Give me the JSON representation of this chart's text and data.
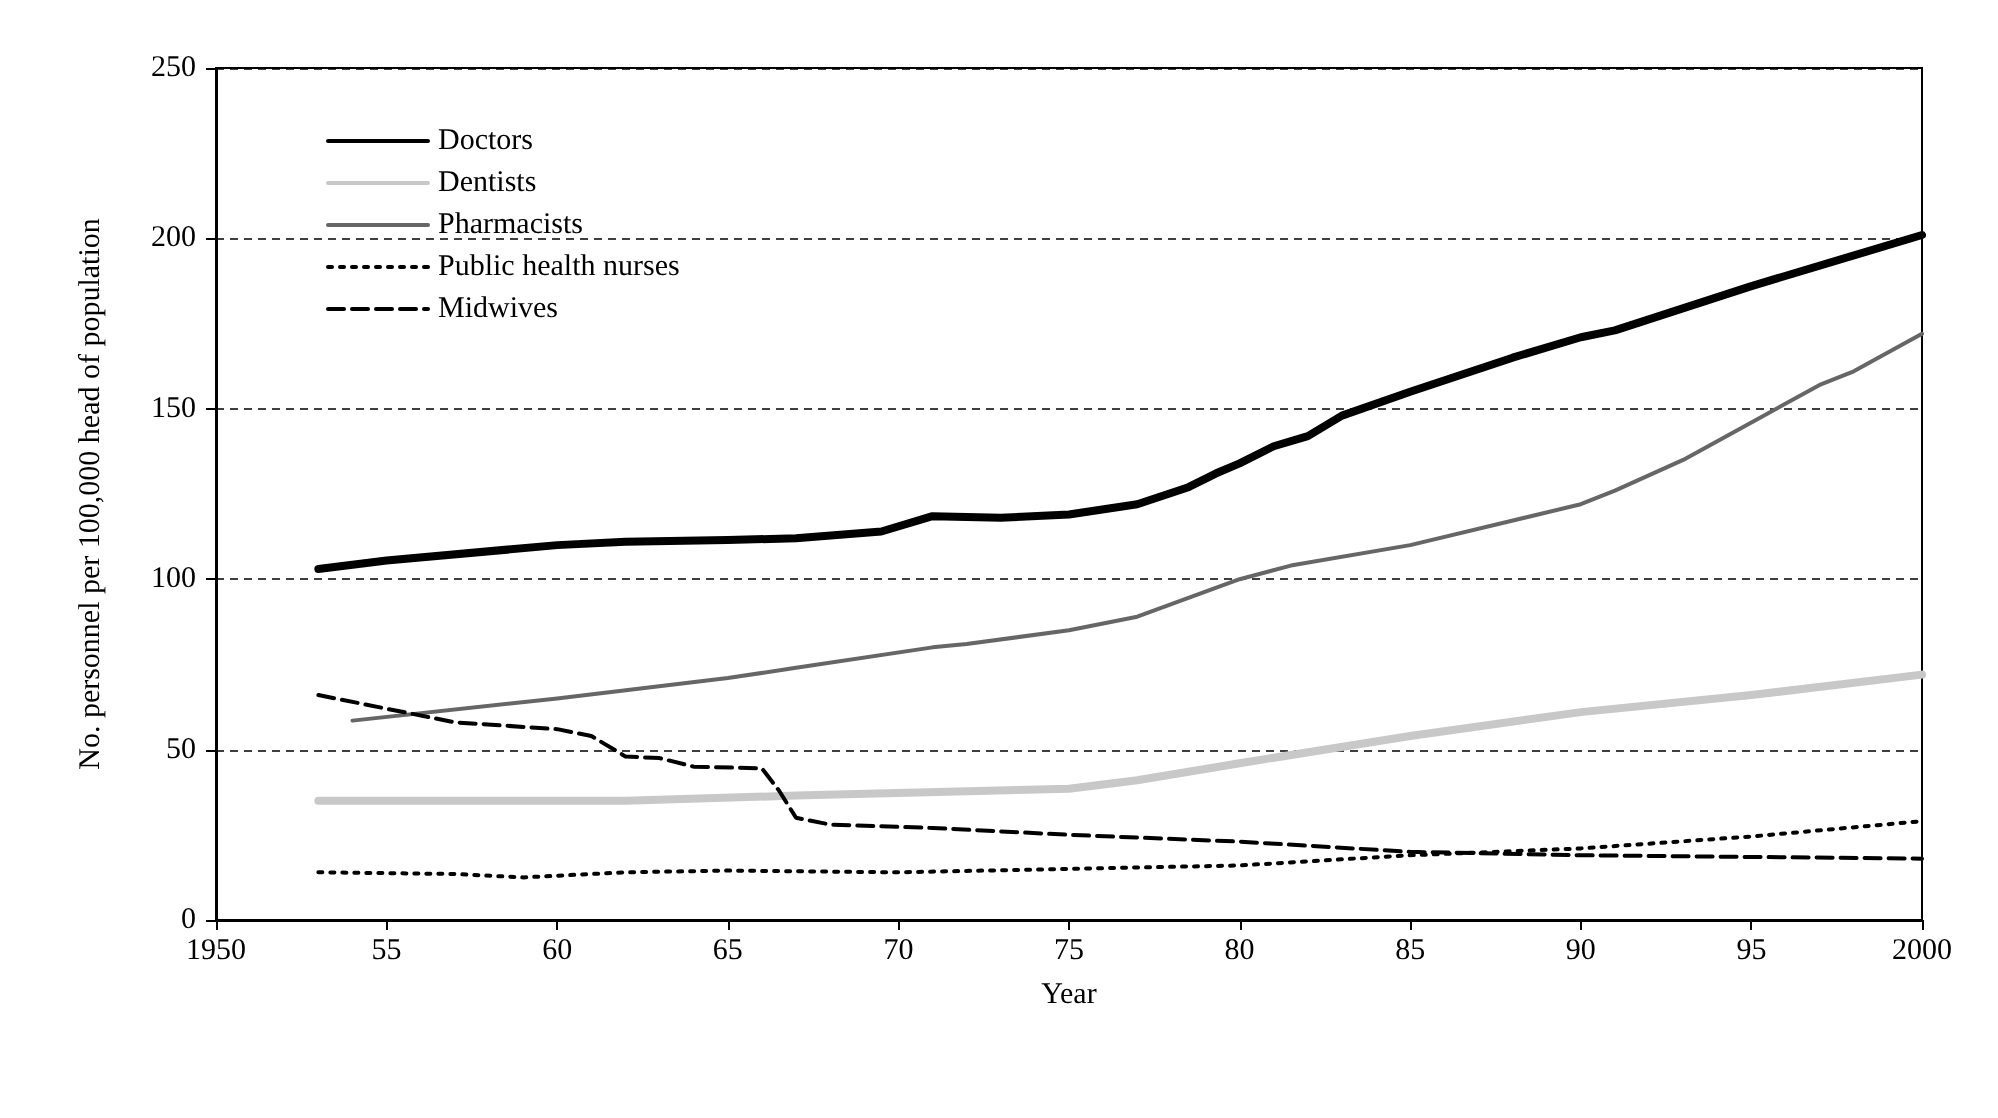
{
  "chart_data": {
    "type": "line",
    "xlabel": "Year",
    "ylabel": "No. personnel per 100,000 head of population",
    "xlim": [
      1950,
      2000
    ],
    "xticks": [
      {
        "value": 1950,
        "label": "1950"
      },
      {
        "value": 1955,
        "label": "55"
      },
      {
        "value": 1960,
        "label": "60"
      },
      {
        "value": 1965,
        "label": "65"
      },
      {
        "value": 1970,
        "label": "70"
      },
      {
        "value": 1975,
        "label": "75"
      },
      {
        "value": 1980,
        "label": "80"
      },
      {
        "value": 1985,
        "label": "85"
      },
      {
        "value": 1990,
        "label": "90"
      },
      {
        "value": 1995,
        "label": "95"
      },
      {
        "value": 2000,
        "label": "2000"
      }
    ],
    "ylim": [
      0,
      250
    ],
    "yticks": [
      0,
      50,
      100,
      150,
      200,
      250
    ],
    "grid": "y",
    "legend": "top left",
    "marker": "none",
    "series": [
      {
        "name": "Doctors",
        "color": "#000000",
        "line_style": "solid",
        "x": [
          1953,
          1955,
          1960,
          1962,
          1965,
          1967,
          1969.5,
          1971,
          1973,
          1975,
          1977,
          1978.5,
          1979.3,
          1980,
          1981,
          1982,
          1983,
          1985,
          1988,
          1990,
          1991,
          1995,
          2000
        ],
        "values": [
          103,
          105.5,
          110,
          111,
          111.5,
          112,
          114,
          118.5,
          118,
          119,
          122,
          127,
          131,
          134,
          139,
          142,
          148,
          155,
          165,
          171,
          173,
          186,
          201
        ]
      },
      {
        "name": "Dentists",
        "color": "#c8c8c8",
        "line_style": "solid",
        "x": [
          1953,
          1962,
          1967,
          1975,
          1977,
          1980,
          1985,
          1990,
          1995,
          2000
        ],
        "values": [
          35,
          35,
          36.5,
          38.5,
          41,
          46,
          54,
          61,
          66,
          72
        ]
      },
      {
        "name": "Pharmacists",
        "color": "#666666",
        "line_style": "solid",
        "x": [
          1954,
          1960,
          1965,
          1967,
          1971,
          1972,
          1975,
          1977,
          1980,
          1981.5,
          1985,
          1990,
          1991,
          1993,
          1995,
          1997,
          1998,
          2000
        ],
        "values": [
          58.5,
          65,
          71,
          74,
          80,
          81,
          85,
          89,
          100,
          104,
          110,
          122,
          126,
          135,
          146,
          157,
          161,
          172
        ]
      },
      {
        "name": "Public health nurses",
        "color": "#000000",
        "line_style": "dotted",
        "x": [
          1953,
          1957,
          1959,
          1962,
          1965,
          1970,
          1975,
          1980,
          1985,
          1990,
          1995,
          2000
        ],
        "values": [
          14,
          13.5,
          12.5,
          14,
          14.5,
          14,
          15,
          16,
          19,
          21,
          24.5,
          29
        ]
      },
      {
        "name": "Midwives",
        "color": "#000000",
        "line_style": "dashed",
        "x": [
          1953,
          1955,
          1957,
          1960,
          1961,
          1962,
          1963,
          1964,
          1966,
          1966.5,
          1967,
          1968,
          1971,
          1975,
          1980,
          1985,
          1990,
          2000
        ],
        "values": [
          66,
          62,
          58,
          56,
          54,
          48,
          47.5,
          45,
          44.5,
          38,
          30,
          28,
          27,
          25,
          23,
          20,
          19,
          18
        ]
      }
    ]
  }
}
